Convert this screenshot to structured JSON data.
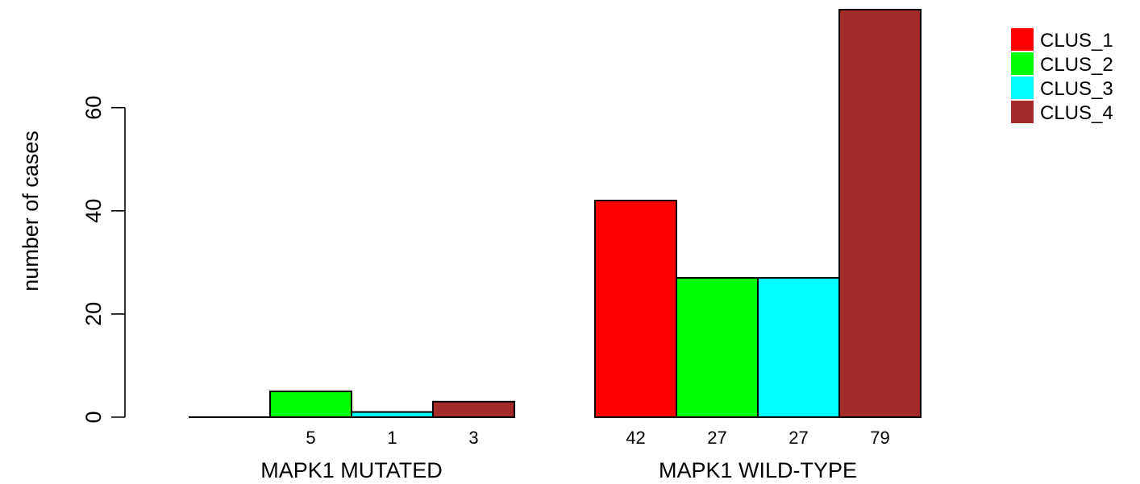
{
  "chart_data": {
    "type": "bar",
    "title": "",
    "xlabel": "",
    "ylabel": "number of cases",
    "ylim": [
      0,
      79
    ],
    "yticks": [
      0,
      20,
      40,
      60
    ],
    "grid": false,
    "legend_position": "top-right",
    "categories": [
      "MAPK1 MUTATED",
      "MAPK1 WILD-TYPE"
    ],
    "series": [
      {
        "name": "CLUS_1",
        "color": "#FF0000",
        "values": [
          0,
          42
        ],
        "labels": [
          "",
          "42"
        ]
      },
      {
        "name": "CLUS_2",
        "color": "#00FF00",
        "values": [
          5,
          27
        ],
        "labels": [
          "5",
          "27"
        ]
      },
      {
        "name": "CLUS_3",
        "color": "#00FFFF",
        "values": [
          1,
          27
        ],
        "labels": [
          "1",
          "27"
        ]
      },
      {
        "name": "CLUS_4",
        "color": "#A52A2A",
        "values": [
          3,
          79
        ],
        "labels": [
          "3",
          "79"
        ]
      }
    ]
  }
}
